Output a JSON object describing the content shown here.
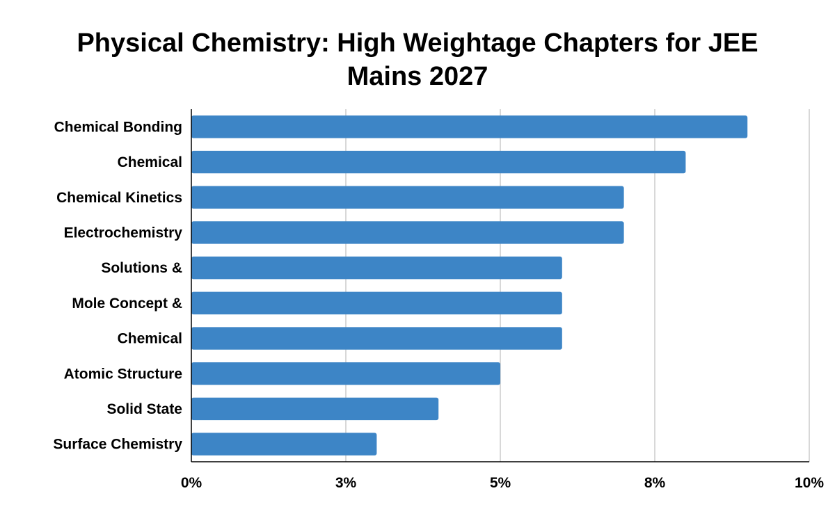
{
  "chart_data": {
    "type": "bar",
    "orientation": "horizontal",
    "title": "Physical Chemistry: High Weightage Chapters for JEE Mains 2027",
    "categories": [
      "Chemical Bonding",
      "Chemical",
      "Chemical Kinetics",
      "Electrochemistry",
      "Solutions &",
      "Mole Concept &",
      "Chemical",
      "Atomic Structure",
      "Solid State",
      "Surface Chemistry"
    ],
    "values": [
      9,
      8,
      7,
      7,
      6,
      6,
      6,
      5,
      4,
      3
    ],
    "xlim": [
      0,
      10
    ],
    "x_ticks": [
      0,
      2.5,
      5,
      7.5,
      10
    ],
    "x_tick_labels": [
      "0%",
      "3%",
      "5%",
      "8%",
      "10%"
    ],
    "xlabel": "",
    "ylabel": "",
    "grid": true,
    "legend": "none",
    "bar_color": "#3d85c6"
  }
}
